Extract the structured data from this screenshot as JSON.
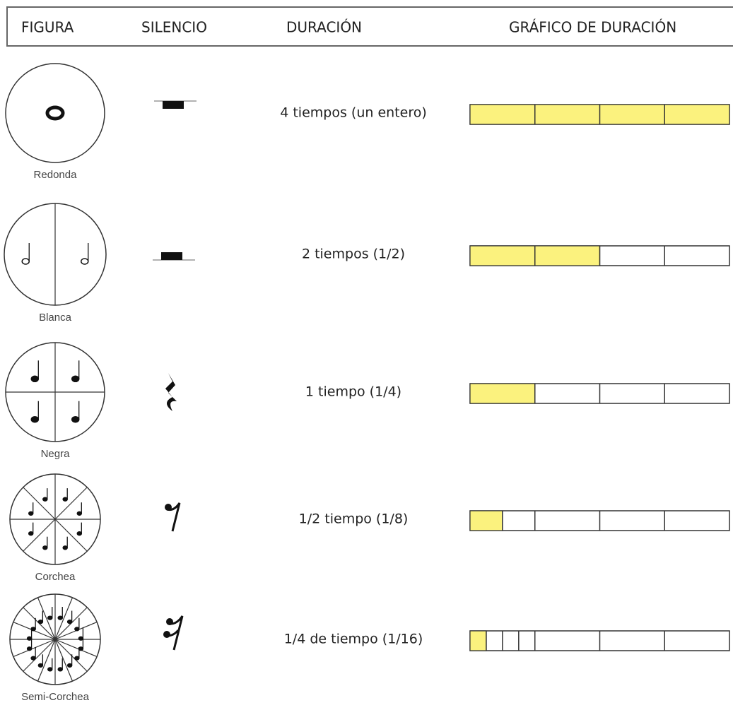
{
  "header": {
    "columns": [
      "FIGURA",
      "SILENCIO",
      "DURACIÓN",
      "GRÁFICO DE DURACIÓN"
    ]
  },
  "rows": [
    {
      "name": "Redonda",
      "duration": "4 tiempos (un entero)"
    },
    {
      "name": "Blanca",
      "duration": "2 tiempos (1/2)"
    },
    {
      "name": "Negra",
      "duration": "1 tiempo (1/4)"
    },
    {
      "name": "Corchea",
      "duration": "1/2 tiempo (1/8)"
    },
    {
      "name": "Semi-Corchea",
      "duration": "1/4 de tiempo (1/16)"
    }
  ]
}
